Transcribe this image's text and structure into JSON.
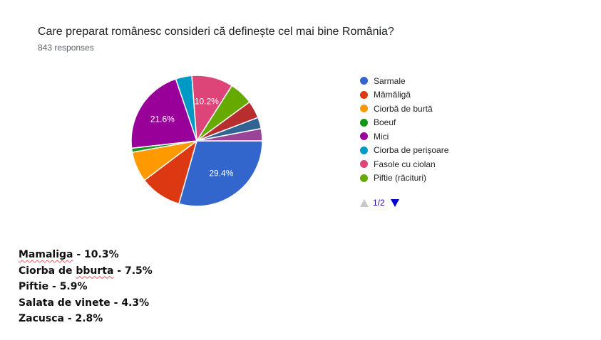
{
  "question": {
    "title": "Care preparat românesc consideri că definește cel mai bine România?",
    "responses": "843 responses"
  },
  "chart_data": {
    "type": "pie",
    "title": "Care preparat românesc consideri că definește cel mai bine România?",
    "total_responses": 843,
    "start_angle_deg": 90,
    "direction": "clockwise",
    "slices": [
      {
        "label": "Sarmale",
        "value": 29.4,
        "color": "#3366cc",
        "show_label": true
      },
      {
        "label": "Mămăligă",
        "value": 10.3,
        "color": "#dc3912",
        "show_label": false
      },
      {
        "label": "Ciorbă de burtă",
        "value": 7.5,
        "color": "#ff9900",
        "show_label": false
      },
      {
        "label": "Boeuf",
        "value": 1.0,
        "color": "#109618",
        "show_label": false
      },
      {
        "label": "Mici",
        "value": 21.6,
        "color": "#990099",
        "show_label": true
      },
      {
        "label": "Ciorba de perișoare",
        "value": 4.0,
        "color": "#0099c6",
        "show_label": false
      },
      {
        "label": "Fasole cu ciolan",
        "value": 10.2,
        "color": "#dd4477",
        "show_label": true
      },
      {
        "label": "Piftie (răcituri)",
        "value": 5.9,
        "color": "#66aa00",
        "show_label": false
      },
      {
        "label": "",
        "value": 4.3,
        "color": "#b82e2e",
        "show_label": false
      },
      {
        "label": "",
        "value": 2.8,
        "color": "#316395",
        "show_label": false
      },
      {
        "label": "",
        "value": 3.0,
        "color": "#994499",
        "show_label": false
      }
    ],
    "legend_position": "right"
  },
  "legend": {
    "items": [
      {
        "label": "Sarmale",
        "color": "#3366cc"
      },
      {
        "label": "Mămăligă",
        "color": "#dc3912"
      },
      {
        "label": "Ciorbă de burtă",
        "color": "#ff9900"
      },
      {
        "label": "Boeuf",
        "color": "#109618"
      },
      {
        "label": "Mici",
        "color": "#990099"
      },
      {
        "label": "Ciorba de perișoare",
        "color": "#0099c6"
      },
      {
        "label": "Fasole cu ciolan",
        "color": "#dd4477"
      },
      {
        "label": "Piftie (răciturі)",
        "color": "#66aa00"
      }
    ],
    "pager": "1/2"
  },
  "notes": [
    {
      "name": "Mamaliga",
      "rest": " - 10.3%"
    },
    {
      "pre": "Ciorba de ",
      "name": "bburta",
      "rest": " - 7.5%"
    },
    {
      "text": "Piftie - 5.9%"
    },
    {
      "text": "Salata de vinete - 4.3%"
    },
    {
      "text": "Zacusca - 2.8%"
    }
  ]
}
